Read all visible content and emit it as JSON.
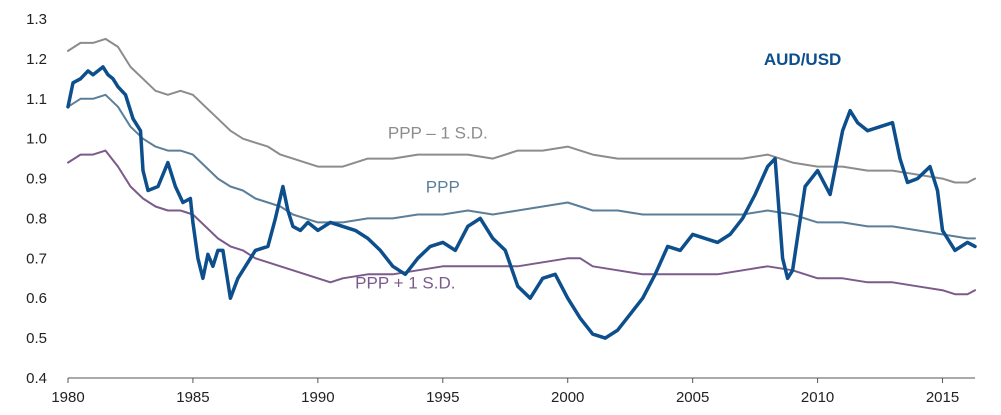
{
  "chart_data": {
    "type": "line",
    "title": "",
    "xlabel": "",
    "ylabel": "",
    "xlim": [
      1980,
      2016.3
    ],
    "ylim": [
      0.4,
      1.3
    ],
    "x_ticks": [
      "1980",
      "1985",
      "1990",
      "1995",
      "2000",
      "2005",
      "2010",
      "2015"
    ],
    "y_ticks": [
      "0.4",
      "0.5",
      "0.6",
      "0.7",
      "0.8",
      "0.9",
      "1.0",
      "1.1",
      "1.2",
      "1.3"
    ],
    "grid": false,
    "series": [
      {
        "name": "PPP – 1 S.D.",
        "color": "#8c8c8c",
        "points": [
          [
            1980,
            1.22
          ],
          [
            1980.5,
            1.24
          ],
          [
            1981,
            1.24
          ],
          [
            1981.5,
            1.25
          ],
          [
            1982,
            1.23
          ],
          [
            1982.5,
            1.18
          ],
          [
            1983,
            1.15
          ],
          [
            1983.5,
            1.12
          ],
          [
            1984,
            1.11
          ],
          [
            1984.5,
            1.12
          ],
          [
            1985,
            1.11
          ],
          [
            1985.5,
            1.08
          ],
          [
            1986,
            1.05
          ],
          [
            1986.5,
            1.02
          ],
          [
            1987,
            1.0
          ],
          [
            1987.5,
            0.99
          ],
          [
            1988,
            0.98
          ],
          [
            1988.5,
            0.96
          ],
          [
            1989,
            0.95
          ],
          [
            1989.5,
            0.94
          ],
          [
            1990,
            0.93
          ],
          [
            1990.5,
            0.93
          ],
          [
            1991,
            0.93
          ],
          [
            1991.5,
            0.94
          ],
          [
            1992,
            0.95
          ],
          [
            1992.5,
            0.95
          ],
          [
            1993,
            0.95
          ],
          [
            1994,
            0.96
          ],
          [
            1995,
            0.96
          ],
          [
            1996,
            0.96
          ],
          [
            1997,
            0.95
          ],
          [
            1998,
            0.97
          ],
          [
            1999,
            0.97
          ],
          [
            2000,
            0.98
          ],
          [
            2000.5,
            0.97
          ],
          [
            2001,
            0.96
          ],
          [
            2002,
            0.95
          ],
          [
            2003,
            0.95
          ],
          [
            2004,
            0.95
          ],
          [
            2005,
            0.95
          ],
          [
            2006,
            0.95
          ],
          [
            2007,
            0.95
          ],
          [
            2008,
            0.96
          ],
          [
            2009,
            0.94
          ],
          [
            2010,
            0.93
          ],
          [
            2011,
            0.93
          ],
          [
            2012,
            0.92
          ],
          [
            2013,
            0.92
          ],
          [
            2014,
            0.91
          ],
          [
            2015,
            0.9
          ],
          [
            2015.5,
            0.89
          ],
          [
            2016,
            0.89
          ],
          [
            2016.3,
            0.9
          ]
        ]
      },
      {
        "name": "PPP",
        "color": "#5b7f99",
        "points": [
          [
            1980,
            1.08
          ],
          [
            1980.5,
            1.1
          ],
          [
            1981,
            1.1
          ],
          [
            1981.5,
            1.11
          ],
          [
            1982,
            1.08
          ],
          [
            1982.5,
            1.03
          ],
          [
            1983,
            1.0
          ],
          [
            1983.5,
            0.98
          ],
          [
            1984,
            0.97
          ],
          [
            1984.5,
            0.97
          ],
          [
            1985,
            0.96
          ],
          [
            1985.5,
            0.93
          ],
          [
            1986,
            0.9
          ],
          [
            1986.5,
            0.88
          ],
          [
            1987,
            0.87
          ],
          [
            1987.5,
            0.85
          ],
          [
            1988,
            0.84
          ],
          [
            1988.5,
            0.83
          ],
          [
            1989,
            0.81
          ],
          [
            1989.5,
            0.8
          ],
          [
            1990,
            0.79
          ],
          [
            1991,
            0.79
          ],
          [
            1992,
            0.8
          ],
          [
            1993,
            0.8
          ],
          [
            1994,
            0.81
          ],
          [
            1995,
            0.81
          ],
          [
            1996,
            0.82
          ],
          [
            1997,
            0.81
          ],
          [
            1998,
            0.82
          ],
          [
            1999,
            0.83
          ],
          [
            2000,
            0.84
          ],
          [
            2000.5,
            0.83
          ],
          [
            2001,
            0.82
          ],
          [
            2002,
            0.82
          ],
          [
            2003,
            0.81
          ],
          [
            2004,
            0.81
          ],
          [
            2005,
            0.81
          ],
          [
            2006,
            0.81
          ],
          [
            2007,
            0.81
          ],
          [
            2008,
            0.82
          ],
          [
            2009,
            0.81
          ],
          [
            2010,
            0.79
          ],
          [
            2011,
            0.79
          ],
          [
            2012,
            0.78
          ],
          [
            2013,
            0.78
          ],
          [
            2014,
            0.77
          ],
          [
            2015,
            0.76
          ],
          [
            2016,
            0.75
          ],
          [
            2016.3,
            0.75
          ]
        ]
      },
      {
        "name": "PPP + 1 S.D.",
        "color": "#7b5a8c",
        "points": [
          [
            1980,
            0.94
          ],
          [
            1980.5,
            0.96
          ],
          [
            1981,
            0.96
          ],
          [
            1981.5,
            0.97
          ],
          [
            1982,
            0.93
          ],
          [
            1982.5,
            0.88
          ],
          [
            1983,
            0.85
          ],
          [
            1983.5,
            0.83
          ],
          [
            1984,
            0.82
          ],
          [
            1984.5,
            0.82
          ],
          [
            1985,
            0.81
          ],
          [
            1985.5,
            0.78
          ],
          [
            1986,
            0.75
          ],
          [
            1986.5,
            0.73
          ],
          [
            1987,
            0.72
          ],
          [
            1987.5,
            0.7
          ],
          [
            1988,
            0.69
          ],
          [
            1988.5,
            0.68
          ],
          [
            1989,
            0.67
          ],
          [
            1989.5,
            0.66
          ],
          [
            1990,
            0.65
          ],
          [
            1990.5,
            0.64
          ],
          [
            1991,
            0.65
          ],
          [
            1992,
            0.66
          ],
          [
            1993,
            0.66
          ],
          [
            1994,
            0.67
          ],
          [
            1995,
            0.68
          ],
          [
            1996,
            0.68
          ],
          [
            1997,
            0.68
          ],
          [
            1998,
            0.68
          ],
          [
            1999,
            0.69
          ],
          [
            2000,
            0.7
          ],
          [
            2000.5,
            0.7
          ],
          [
            2001,
            0.68
          ],
          [
            2002,
            0.67
          ],
          [
            2003,
            0.66
          ],
          [
            2004,
            0.66
          ],
          [
            2005,
            0.66
          ],
          [
            2006,
            0.66
          ],
          [
            2007,
            0.67
          ],
          [
            2008,
            0.68
          ],
          [
            2009,
            0.67
          ],
          [
            2010,
            0.65
          ],
          [
            2011,
            0.65
          ],
          [
            2012,
            0.64
          ],
          [
            2013,
            0.64
          ],
          [
            2014,
            0.63
          ],
          [
            2015,
            0.62
          ],
          [
            2015.5,
            0.61
          ],
          [
            2016,
            0.61
          ],
          [
            2016.3,
            0.62
          ]
        ]
      },
      {
        "name": "AUD/USD",
        "color": "#0d4f8c",
        "points": [
          [
            1980,
            1.08
          ],
          [
            1980.2,
            1.14
          ],
          [
            1980.5,
            1.15
          ],
          [
            1980.8,
            1.17
          ],
          [
            1981,
            1.16
          ],
          [
            1981.2,
            1.17
          ],
          [
            1981.4,
            1.18
          ],
          [
            1981.6,
            1.16
          ],
          [
            1981.8,
            1.15
          ],
          [
            1982,
            1.13
          ],
          [
            1982.3,
            1.11
          ],
          [
            1982.6,
            1.05
          ],
          [
            1982.9,
            1.02
          ],
          [
            1983,
            0.92
          ],
          [
            1983.2,
            0.87
          ],
          [
            1983.6,
            0.88
          ],
          [
            1984,
            0.94
          ],
          [
            1984.3,
            0.88
          ],
          [
            1984.6,
            0.84
          ],
          [
            1984.9,
            0.85
          ],
          [
            1985,
            0.79
          ],
          [
            1985.2,
            0.7
          ],
          [
            1985.4,
            0.65
          ],
          [
            1985.6,
            0.71
          ],
          [
            1985.8,
            0.68
          ],
          [
            1986,
            0.72
          ],
          [
            1986.2,
            0.72
          ],
          [
            1986.5,
            0.6
          ],
          [
            1986.8,
            0.65
          ],
          [
            1987,
            0.67
          ],
          [
            1987.5,
            0.72
          ],
          [
            1988,
            0.73
          ],
          [
            1988.3,
            0.8
          ],
          [
            1988.6,
            0.88
          ],
          [
            1988.8,
            0.82
          ],
          [
            1989,
            0.78
          ],
          [
            1989.3,
            0.77
          ],
          [
            1989.6,
            0.79
          ],
          [
            1990,
            0.77
          ],
          [
            1990.5,
            0.79
          ],
          [
            1991,
            0.78
          ],
          [
            1991.5,
            0.77
          ],
          [
            1992,
            0.75
          ],
          [
            1992.5,
            0.72
          ],
          [
            1993,
            0.68
          ],
          [
            1993.5,
            0.66
          ],
          [
            1994,
            0.7
          ],
          [
            1994.5,
            0.73
          ],
          [
            1995,
            0.74
          ],
          [
            1995.5,
            0.72
          ],
          [
            1996,
            0.78
          ],
          [
            1996.5,
            0.8
          ],
          [
            1997,
            0.75
          ],
          [
            1997.5,
            0.72
          ],
          [
            1998,
            0.63
          ],
          [
            1998.5,
            0.6
          ],
          [
            1999,
            0.65
          ],
          [
            1999.5,
            0.66
          ],
          [
            2000,
            0.6
          ],
          [
            2000.5,
            0.55
          ],
          [
            2001,
            0.51
          ],
          [
            2001.5,
            0.5
          ],
          [
            2002,
            0.52
          ],
          [
            2002.5,
            0.56
          ],
          [
            2003,
            0.6
          ],
          [
            2003.5,
            0.66
          ],
          [
            2004,
            0.73
          ],
          [
            2004.5,
            0.72
          ],
          [
            2005,
            0.76
          ],
          [
            2005.5,
            0.75
          ],
          [
            2006,
            0.74
          ],
          [
            2006.5,
            0.76
          ],
          [
            2007,
            0.8
          ],
          [
            2007.5,
            0.86
          ],
          [
            2008,
            0.93
          ],
          [
            2008.3,
            0.95
          ],
          [
            2008.6,
            0.7
          ],
          [
            2008.8,
            0.65
          ],
          [
            2009,
            0.67
          ],
          [
            2009.5,
            0.88
          ],
          [
            2010,
            0.92
          ],
          [
            2010.5,
            0.86
          ],
          [
            2011,
            1.02
          ],
          [
            2011.3,
            1.07
          ],
          [
            2011.6,
            1.04
          ],
          [
            2012,
            1.02
          ],
          [
            2012.5,
            1.03
          ],
          [
            2013,
            1.04
          ],
          [
            2013.3,
            0.95
          ],
          [
            2013.6,
            0.89
          ],
          [
            2014,
            0.9
          ],
          [
            2014.5,
            0.93
          ],
          [
            2014.8,
            0.87
          ],
          [
            2015,
            0.77
          ],
          [
            2015.5,
            0.72
          ],
          [
            2016,
            0.74
          ],
          [
            2016.3,
            0.73
          ]
        ]
      }
    ],
    "annotations": [
      {
        "series": 0,
        "text": "PPP – 1 S.D.",
        "x": 1994.8,
        "y": 1.0
      },
      {
        "series": 1,
        "text": "PPP",
        "x": 1995.0,
        "y": 0.865
      },
      {
        "series": 2,
        "text": "PPP + 1 S.D.",
        "x": 1993.5,
        "y": 0.625
      },
      {
        "series": 3,
        "text": "AUD/USD",
        "x": 2009.4,
        "y": 1.185
      }
    ]
  }
}
